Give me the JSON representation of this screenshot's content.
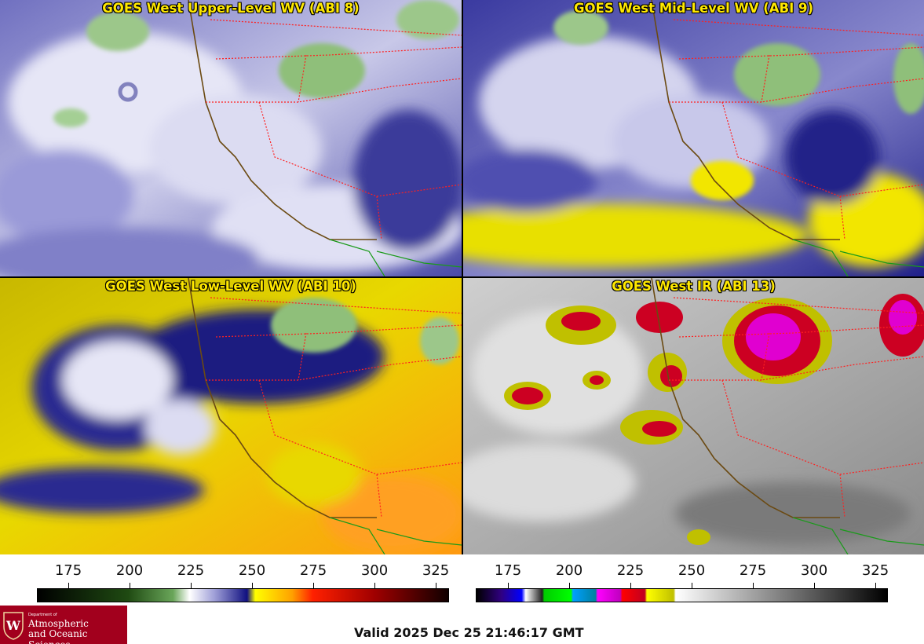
{
  "panels": [
    {
      "title": "GOES West Upper-Level WV (ABI 8)"
    },
    {
      "title": "GOES West Mid-Level WV (ABI 9)"
    },
    {
      "title": "GOES West Low-Level WV (ABI 10)"
    },
    {
      "title": "GOES West IR (ABI 13)"
    }
  ],
  "colorbar_left": {
    "ticks": [
      "175",
      "200",
      "225",
      "250",
      "275",
      "300",
      "325"
    ]
  },
  "colorbar_right": {
    "ticks": [
      "175",
      "200",
      "225",
      "250",
      "275",
      "300",
      "325"
    ]
  },
  "logo": {
    "dept": "Department of",
    "line1": "Atmospheric",
    "line2": "and Oceanic Sciences"
  },
  "valid_time": "Valid 2025 Dec 25 21:46:17 GMT",
  "colors": {
    "wv_dark": "#1a1a6e",
    "wv_light": "#e8e8f5",
    "wv_yellow": "#f2e600",
    "ir_gray": "#a8a8a8",
    "ir_red": "#cc0022",
    "ir_magenta": "#e000d0",
    "title_yellow": "#ffe800",
    "border_red": "#ff2020",
    "coast": "#6b4a12"
  }
}
